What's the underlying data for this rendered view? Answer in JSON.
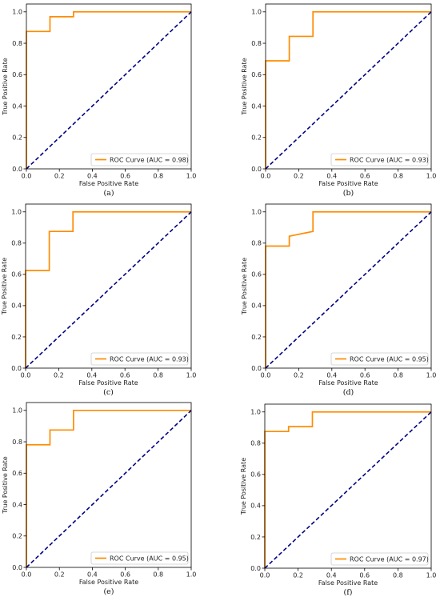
{
  "chart_data": [
    {
      "type": "line",
      "panel_label": "(a)",
      "xlabel": "False Positive Rate",
      "ylabel": "True Positive Rate",
      "xlim": [
        0,
        1
      ],
      "ylim": [
        0,
        1.05
      ],
      "xticks": [
        "0.0",
        "0.2",
        "0.4",
        "0.6",
        "0.8",
        "1.0"
      ],
      "yticks": [
        "0.0",
        "0.2",
        "0.4",
        "0.6",
        "0.8",
        "1.0"
      ],
      "legend_position": "lower-right",
      "series": [
        {
          "name": "ROC Curve (AUC = 0.98)",
          "color": "#ff8c00",
          "x": [
            0,
            0,
            0.143,
            0.143,
            0.286,
            0.286,
            1.0
          ],
          "y": [
            0,
            0.875,
            0.875,
            0.969,
            0.969,
            1.0,
            1.0
          ]
        },
        {
          "color": "#000080",
          "style": "dashed",
          "x": [
            0,
            1
          ],
          "y": [
            0,
            1
          ]
        }
      ]
    },
    {
      "type": "line",
      "panel_label": "(b)",
      "xlabel": "False Positive Rate",
      "ylabel": "True Positive Rate",
      "xlim": [
        0,
        1
      ],
      "ylim": [
        0,
        1.05
      ],
      "xticks": [
        "0.0",
        "0.2",
        "0.4",
        "0.6",
        "0.8",
        "1.0"
      ],
      "yticks": [
        "0.0",
        "0.2",
        "0.4",
        "0.6",
        "0.8",
        "1.0"
      ],
      "legend_position": "lower-right",
      "series": [
        {
          "name": "ROC Curve (AUC = 0.93)",
          "color": "#ff8c00",
          "x": [
            0,
            0,
            0.143,
            0.143,
            0.286,
            0.286,
            1.0
          ],
          "y": [
            0,
            0.688,
            0.688,
            0.844,
            0.844,
            1.0,
            1.0
          ]
        },
        {
          "color": "#000080",
          "style": "dashed",
          "x": [
            0,
            1
          ],
          "y": [
            0,
            1
          ]
        }
      ]
    },
    {
      "type": "line",
      "panel_label": "(c)",
      "xlabel": "False Positive Rate",
      "ylabel": "True Positive Rate",
      "xlim": [
        0,
        1
      ],
      "ylim": [
        0,
        1.05
      ],
      "xticks": [
        "0.0",
        "0.2",
        "0.4",
        "0.6",
        "0.8",
        "1.0"
      ],
      "yticks": [
        "0.0",
        "0.2",
        "0.4",
        "0.6",
        "0.8",
        "1.0"
      ],
      "legend_position": "lower-right",
      "series": [
        {
          "name": "ROC Curve (AUC = 0.93)",
          "color": "#ff8c00",
          "x": [
            0,
            0,
            0.143,
            0.143,
            0.286,
            0.286,
            1.0
          ],
          "y": [
            0,
            0.625,
            0.625,
            0.875,
            0.875,
            1.0,
            1.0
          ]
        },
        {
          "color": "#000080",
          "style": "dashed",
          "x": [
            0,
            1
          ],
          "y": [
            0,
            1
          ]
        }
      ]
    },
    {
      "type": "line",
      "panel_label": "(d)",
      "xlabel": "False Positive Rate",
      "ylabel": "True Positive Rate",
      "xlim": [
        0,
        1
      ],
      "ylim": [
        0,
        1.05
      ],
      "xticks": [
        "0.0",
        "0.2",
        "0.4",
        "0.6",
        "0.8",
        "1.0"
      ],
      "yticks": [
        "0.0",
        "0.2",
        "0.4",
        "0.6",
        "0.8",
        "1.0"
      ],
      "legend_position": "lower-right",
      "series": [
        {
          "name": "ROC Curve (AUC = 0.95)",
          "color": "#ff8c00",
          "x": [
            0,
            0,
            0.143,
            0.143,
            0.286,
            0.286,
            1.0
          ],
          "y": [
            0,
            0.781,
            0.781,
            0.844,
            0.875,
            1.0,
            1.0
          ]
        },
        {
          "color": "#000080",
          "style": "dashed",
          "x": [
            0,
            1
          ],
          "y": [
            0,
            1
          ]
        }
      ]
    },
    {
      "type": "line",
      "panel_label": "(e)",
      "xlabel": "False Positive Rate",
      "ylabel": "True Positive Rate",
      "xlim": [
        0,
        1
      ],
      "ylim": [
        0,
        1.05
      ],
      "xticks": [
        "0.0",
        "0.2",
        "0.4",
        "0.6",
        "0.8",
        "1.0"
      ],
      "yticks": [
        "0.0",
        "0.2",
        "0.4",
        "0.6",
        "0.8",
        "1.0"
      ],
      "legend_position": "lower-right",
      "series": [
        {
          "name": "ROC Curve (AUC = 0.95)",
          "color": "#ff8c00",
          "x": [
            0,
            0,
            0.143,
            0.143,
            0.286,
            0.286,
            1.0
          ],
          "y": [
            0,
            0.781,
            0.781,
            0.875,
            0.875,
            1.0,
            1.0
          ]
        },
        {
          "color": "#000080",
          "style": "dashed",
          "x": [
            0,
            1
          ],
          "y": [
            0,
            1
          ]
        }
      ]
    },
    {
      "type": "line",
      "panel_label": "(f)",
      "xlabel": "False Positive Rate",
      "ylabel": "True Positive Rate",
      "xlim": [
        0,
        1
      ],
      "ylim": [
        0,
        1.05
      ],
      "xticks": [
        "0.0",
        "0.2",
        "0.4",
        "0.6",
        "0.8",
        "1.0"
      ],
      "yticks": [
        "0.0",
        "0.2",
        "0.4",
        "0.6",
        "0.8",
        "1.0"
      ],
      "legend_position": "lower-right",
      "series": [
        {
          "name": "ROC Curve (AUC = 0.97)",
          "color": "#ff8c00",
          "x": [
            0,
            0,
            0.143,
            0.143,
            0.286,
            0.286,
            1.0
          ],
          "y": [
            0,
            0.875,
            0.875,
            0.906,
            0.906,
            1.0,
            1.0
          ]
        },
        {
          "color": "#000080",
          "style": "dashed",
          "x": [
            0,
            1
          ],
          "y": [
            0,
            1
          ]
        }
      ]
    }
  ]
}
